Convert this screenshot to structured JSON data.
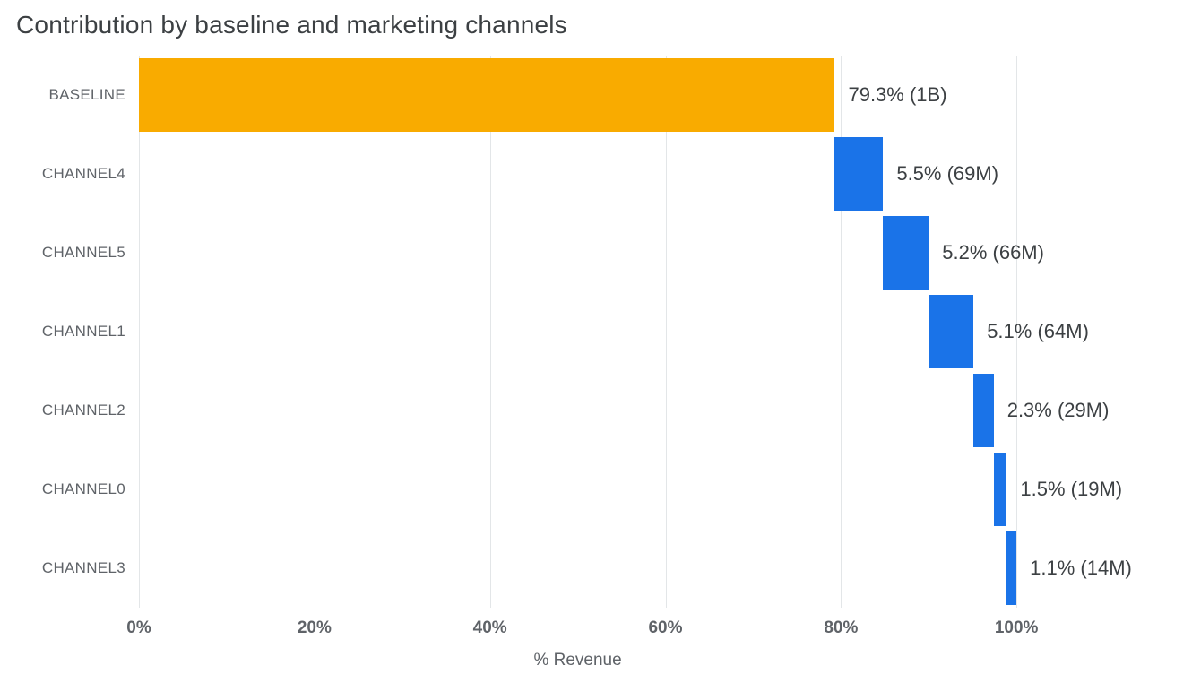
{
  "chart_data": {
    "type": "waterfall",
    "title": "Contribution by baseline and marketing channels",
    "xlabel": "% Revenue",
    "axis_max": 120,
    "grid": true,
    "x_ticks": [
      {
        "value": 0,
        "label": "0%"
      },
      {
        "value": 20,
        "label": "20%"
      },
      {
        "value": 40,
        "label": "40%"
      },
      {
        "value": 60,
        "label": "60%"
      },
      {
        "value": 80,
        "label": "80%"
      },
      {
        "value": 100,
        "label": "100%"
      }
    ],
    "colors": {
      "baseline_bar": "#F9AB00",
      "channel_bar": "#1A73E8",
      "gridline": "#E3E6E8",
      "title_text": "#3C4043",
      "axis_text": "#5F6368",
      "value_text": "#3C4043"
    },
    "bars": [
      {
        "category": "BASELINE",
        "start": 0,
        "value": 79.3,
        "end": 79.3,
        "label": "79.3% (1B)",
        "color": "#F9AB00"
      },
      {
        "category": "CHANNEL4",
        "start": 79.3,
        "value": 5.5,
        "end": 84.8,
        "label": "5.5% (69M)",
        "color": "#1A73E8"
      },
      {
        "category": "CHANNEL5",
        "start": 84.8,
        "value": 5.2,
        "end": 90.0,
        "label": "5.2% (66M)",
        "color": "#1A73E8"
      },
      {
        "category": "CHANNEL1",
        "start": 90.0,
        "value": 5.1,
        "end": 95.1,
        "label": "5.1% (64M)",
        "color": "#1A73E8"
      },
      {
        "category": "CHANNEL2",
        "start": 95.1,
        "value": 2.3,
        "end": 97.4,
        "label": "2.3% (29M)",
        "color": "#1A73E8"
      },
      {
        "category": "CHANNEL0",
        "start": 97.4,
        "value": 1.5,
        "end": 98.9,
        "label": "1.5% (19M)",
        "color": "#1A73E8"
      },
      {
        "category": "CHANNEL3",
        "start": 98.9,
        "value": 1.1,
        "end": 100.0,
        "label": "1.1% (14M)",
        "color": "#1A73E8"
      }
    ]
  }
}
